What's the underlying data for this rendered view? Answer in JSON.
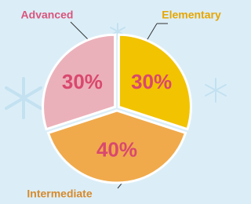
{
  "chart_data": {
    "type": "pie",
    "categories": [
      "Elementary",
      "Intermediate",
      "Advanced"
    ],
    "values": [
      30,
      40,
      30
    ],
    "value_labels": [
      "30%",
      "40%",
      "30%"
    ],
    "colors": [
      "#f2c300",
      "#f0aa4c",
      "#ebb1ba"
    ],
    "label_colors": [
      "#e6a600",
      "#d68a2c",
      "#d9557c"
    ]
  }
}
